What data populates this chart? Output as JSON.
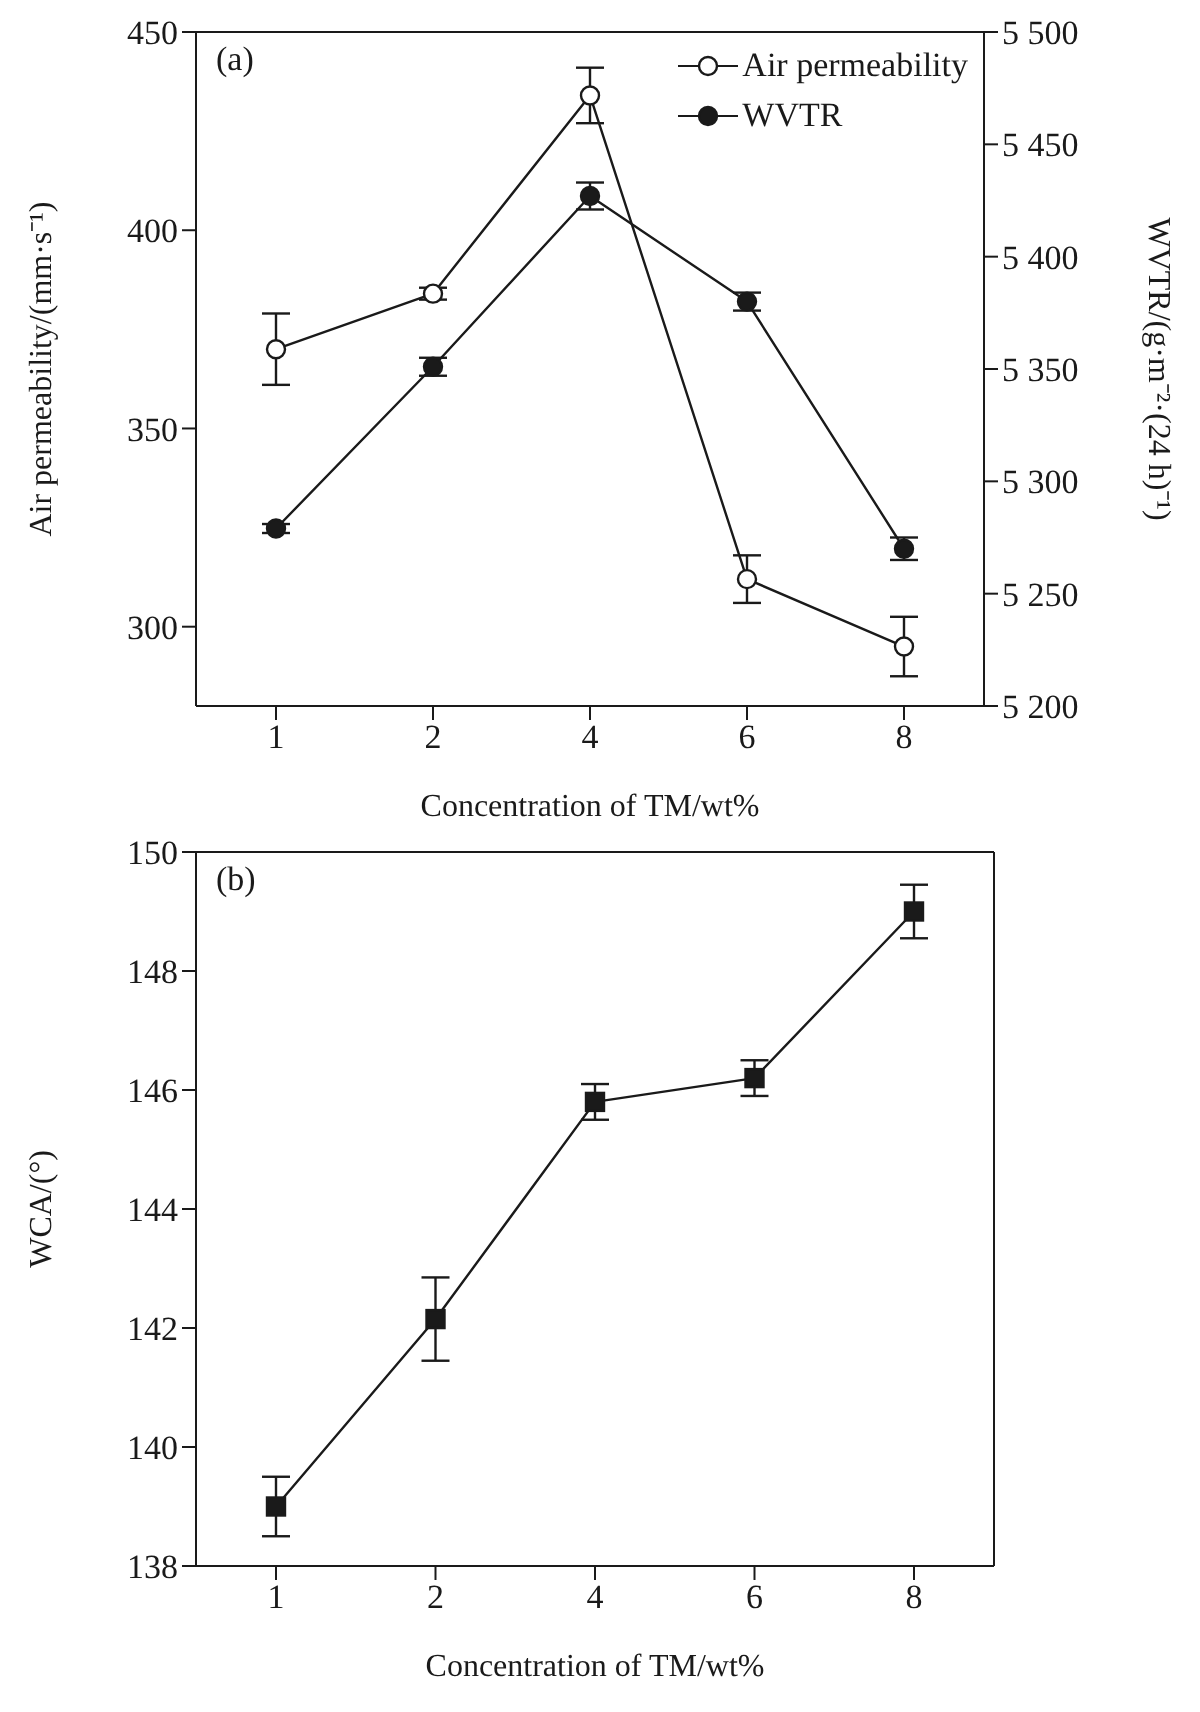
{
  "chart_data": [
    {
      "type": "line",
      "categories": [
        "1",
        "2",
        "4",
        "6",
        "8"
      ],
      "xlabel": "Concentration of TM/wt%",
      "ylabel": "Air permeability/(mm·s⁻¹)",
      "y2label": "WVTR/(g·m⁻²·(24 h)⁻¹)",
      "annotations": [
        "(a)"
      ],
      "ylim": [
        280,
        450
      ],
      "yticks": [
        300,
        350,
        400,
        450
      ],
      "y2lim": [
        5200,
        5500
      ],
      "y2ticks": [
        {
          "value": 5200,
          "label": "5 200"
        },
        {
          "value": 5250,
          "label": "5 250"
        },
        {
          "value": 5300,
          "label": "5 300"
        },
        {
          "value": 5350,
          "label": "5 350"
        },
        {
          "value": 5400,
          "label": "5 400"
        },
        {
          "value": 5450,
          "label": "5 450"
        },
        {
          "value": 5500,
          "label": "5 500"
        }
      ],
      "marker": "circle",
      "legend": "top right",
      "grid": false,
      "series": [
        {
          "name": "Air permeability",
          "color": "#1a1a1a",
          "values": [
            370,
            384,
            434,
            312,
            295
          ],
          "errors": [
            9,
            1.5,
            7,
            6,
            7.5
          ]
        },
        {
          "name": "WVTR",
          "color": "#1a1a1a",
          "axis": "y2",
          "values": [
            5279,
            5351,
            5427,
            5380,
            5270
          ],
          "errors": [
            2,
            4,
            6,
            4,
            5
          ]
        }
      ]
    },
    {
      "type": "line",
      "categories": [
        "1",
        "2",
        "4",
        "6",
        "8"
      ],
      "xlabel": "Concentration of TM/wt%",
      "ylabel": "WCA/(°)",
      "annotations": [
        "(b)"
      ],
      "ylim": [
        138,
        150
      ],
      "yticks": [
        138,
        140,
        142,
        144,
        146,
        148,
        150
      ],
      "marker": "square",
      "legend": false,
      "grid": false,
      "series": [
        {
          "color": "#1a1a1a",
          "values": [
            139,
            142.15,
            145.8,
            146.2,
            149
          ],
          "errors": [
            0.5,
            0.7,
            0.3,
            0.3,
            0.45
          ]
        }
      ]
    }
  ]
}
